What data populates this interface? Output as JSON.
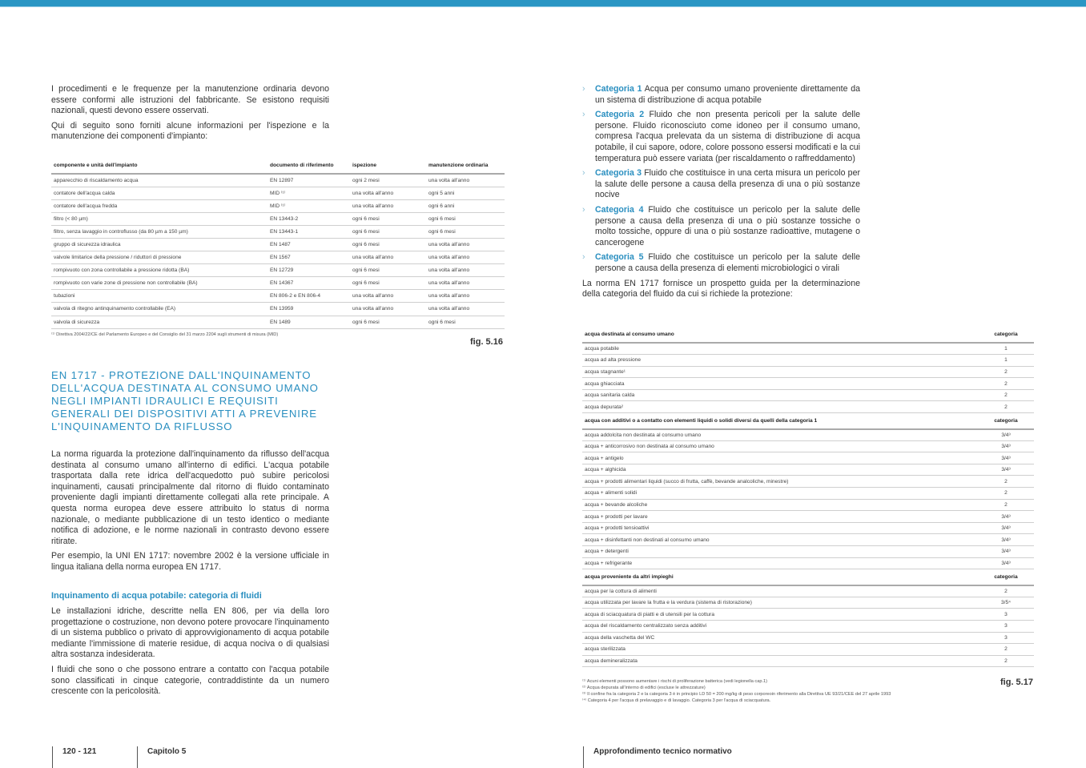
{
  "colors": {
    "accent": "#2a96c4",
    "heading": "#2a8fc0"
  },
  "left": {
    "intro": [
      "I procedimenti e le frequenze per la manutenzione ordinaria devono essere conformi alle istruzioni del fabbricante. Se esistono requisiti nazionali, questi devono essere osservati.",
      "Qui di seguito sono forniti alcune informazioni per l'ispezione e la manutenzione dei componenti d'impianto:"
    ],
    "table": {
      "headers": [
        "componente e unità dell'impianto",
        "documento di riferimento",
        "ispezione",
        "manutenzione ordinaria"
      ],
      "rows": [
        [
          "apparecchio di riscaldamento acqua",
          "EN 12897",
          "ogni 2 mesi",
          "una volta all'anno"
        ],
        [
          "contatore dell'acqua calda",
          "MID ⁽¹⁾",
          "una volta all'anno",
          "ogni 5 anni"
        ],
        [
          "contatore dell'acqua fredda",
          "MID ⁽¹⁾",
          "una volta all'anno",
          "ogni 6 anni"
        ],
        [
          "filtro (< 80 µm)",
          "EN 13443-2",
          "ogni 6 mesi",
          "ogni 6 mesi"
        ],
        [
          "filtro, senza lavaggio in controflusso (da 80 µm a 150 µm)",
          "EN 13443-1",
          "ogni 6 mesi",
          "ogni 6 mesi"
        ],
        [
          "gruppo di sicurezza idraulica",
          "EN 1487",
          "ogni 6 mesi",
          "una volta all'anno"
        ],
        [
          "valvole limitarice della pressione / riduttori di pressione",
          "EN 1567",
          "una volta all'anno",
          "una volta all'anno"
        ],
        [
          "rompivuoto con zona controllabile a pressione ridotta (BA)",
          "EN 12729",
          "ogni 6 mesi",
          "una volta all'anno"
        ],
        [
          "rompivuoto con varie zone di pressione non controllabile (BA)",
          "EN 14367",
          "ogni 6 mesi",
          "una volta all'anno"
        ],
        [
          "tubazioni",
          "EN 806-2 e EN 806-4",
          "una volta all'anno",
          "una volta all'anno"
        ],
        [
          "valvola di ritegno antinquinamento controllabile (EA)",
          "EN 13959",
          "una volta all'anno",
          "una volta all'anno"
        ],
        [
          "valvola di sicurezza",
          "EN 1489",
          "ogni 6 mesi",
          "ogni 6 mesi"
        ]
      ],
      "footnote": "⁽¹⁾ Direttiva 2004/22/CE del Parlamento Europeo e del Consiglio del 31 marzo 2204 sugli strumenti di misura (MID)",
      "figure": "fig. 5.16"
    },
    "heading": "EN 1717 - Protezione dall'inquinamento dell'acqua destinata al consumo umano negli impianti idraulici e requisiti generali dei dispositivi atti a prevenire l'inquinamento da riflusso",
    "body": [
      "La norma riguarda la protezione dall'inquinamento da riflusso dell'acqua destinata al consumo umano all'interno di edifici. L'acqua potabile trasportata dalla rete idrica dell'acquedotto può subire pericolosi inquinamenti, causati principalmente dal ritorno di fluido contaminato proveniente dagli impianti direttamente collegati alla rete principale. A questa norma europea deve essere attribuito lo status di norma nazionale, o mediante pubblicazione di un testo identico o mediante notifica di adozione, e le norme nazionali in contrasto devono essere ritirate.",
      "Per esempio, la UNI EN 1717: novembre 2002 è la versione ufficiale in lingua italiana della norma europea EN 1717."
    ],
    "subheading": "Inquinamento di acqua potabile: categoria di fluidi",
    "body2": [
      "Le installazioni idriche, descritte nella EN 806, per via della loro progettazione o costruzione, non devono potere provocare l'inquinamento di un sistema pubblico o privato di approvvigionamento di acqua potabile mediante l'immissione di materie residue, di acqua nociva o di qualsiasi altra sostanza indesiderata.",
      "I fluidi che sono o che possono entrare a contatto con l'acqua potabile sono classificati in cinque categorie, contraddistinte da un numero crescente con la pericolosità."
    ]
  },
  "right": {
    "categories": [
      {
        "label": "Categoria 1",
        "text": "Acqua per consumo umano proveniente direttamente da un sistema di distribuzione di acqua potabile"
      },
      {
        "label": "Categoria 2",
        "text": "Fluido che non presenta pericoli per la salute delle persone. Fluido riconosciuto come idoneo per il consumo umano, compresa l'acqua prelevata da un sistema di distribuzione di acqua potabile, il cui sapore, odore, colore possono essersi modificati e la cui temperatura può essere variata (per riscaldamento o raffreddamento)"
      },
      {
        "label": "Categoria 3",
        "text": "Fluido che costituisce in una certa misura un pericolo per la salute delle persone a causa della presenza di una o più sostanze nocive"
      },
      {
        "label": "Categoria 4",
        "text": "Fluido che costituisce un pericolo per la salute delle persone a causa della presenza di una o più sostanze tossiche o molto tossiche, oppure di una o più sostanze radioattive, mutagene o cancerogene"
      },
      {
        "label": "Categoria 5",
        "text": "Fluido che costituisce un pericolo per la salute delle persone a causa della presenza di elementi microbiologici o virali"
      }
    ],
    "outro": "La norma EN 1717 fornisce un prospetto guida per la determinazione della categoria del fluido da cui si richiede la protezione:",
    "table": {
      "sections": [
        {
          "header": "acqua destinata al consumo umano",
          "col": "categoria",
          "rows": [
            [
              "acqua potabile",
              "1"
            ],
            [
              "acqua ad alta pressione",
              "1"
            ],
            [
              "acqua stagnante¹",
              "2"
            ],
            [
              "acqua ghiacciata",
              "2"
            ],
            [
              "acqua sanitaria calda",
              "2"
            ],
            [
              "acqua depurata²",
              "2"
            ]
          ]
        },
        {
          "header": "acqua con additivi o a contatto con elementi liquidi o solidi diversi da quelli della categoria 1",
          "col": "categoria",
          "rows": [
            [
              "acqua addolcita non destinata al consumo umano",
              "3/4³"
            ],
            [
              "acqua + anticorrosivo  non destinata al consumo umano",
              "3/4³"
            ],
            [
              "acqua + antigelo",
              "3/4³"
            ],
            [
              "acqua + alghicida",
              "3/4³"
            ],
            [
              "acqua + prodotti alimentari liquidi (succo di frutta, caffè, bevande analcoliche, minestre)",
              "2"
            ],
            [
              "acqua + alimenti solidi",
              "2"
            ],
            [
              "acqua + bevande alcoliche",
              "2"
            ],
            [
              "acqua + prodotti per lavare",
              "3/4³"
            ],
            [
              "acqua + prodotti tensioattivi",
              "3/4³"
            ],
            [
              "acqua + disinfettanti non destinati al consumo umano",
              "3/4³"
            ],
            [
              "acqua + detergenti",
              "3/4³"
            ],
            [
              "acqua + refrigerante",
              "3/4³"
            ]
          ]
        },
        {
          "header": "acqua proveniente da altri impieghi",
          "col": "categoria",
          "rows": [
            [
              "acqua per la cottura di alimenti",
              "2"
            ],
            [
              "acqua utilizzata per lavare la frutta e la verdura (sistema di ristorazione)",
              "3/5⁴"
            ],
            [
              "acqua di sciacquatura di piatti e di utensili per la cottura",
              "3"
            ],
            [
              "acqua del riscaldamento centralizzato senza additivi",
              "3"
            ],
            [
              "acqua della vaschetta del WC",
              "3"
            ],
            [
              "acqua sterilizzata",
              "2"
            ],
            [
              "acqua demineralizzata",
              "2"
            ]
          ]
        }
      ],
      "footnotes": [
        "⁽¹⁾ Acuni elementi possono aumentare i rischi di proliferazione batterica  (vedi legionella cap.1)",
        "⁽²⁾ Acqua depurata all'interno di edifici (escluse le attrezzature)",
        "⁽³⁾ Il confine fra la categoria 2 e la categoria 3 è in principio LD 50 = 200 mg/kg di peso corporeoin riferimento alla Direttiva UE 93/21/CEE del 27 aprile 1993",
        "⁽⁴⁾ Categoria 4 per l'acqua di prelavaggio e di lavaggio. Categoria 3 per l'acqua di sciacquatura."
      ],
      "figure": "fig. 5.17"
    }
  },
  "footer": {
    "pages": "120 - 121",
    "chapter": "Capitolo 5",
    "section": "Approfondimento tecnico normativo"
  }
}
